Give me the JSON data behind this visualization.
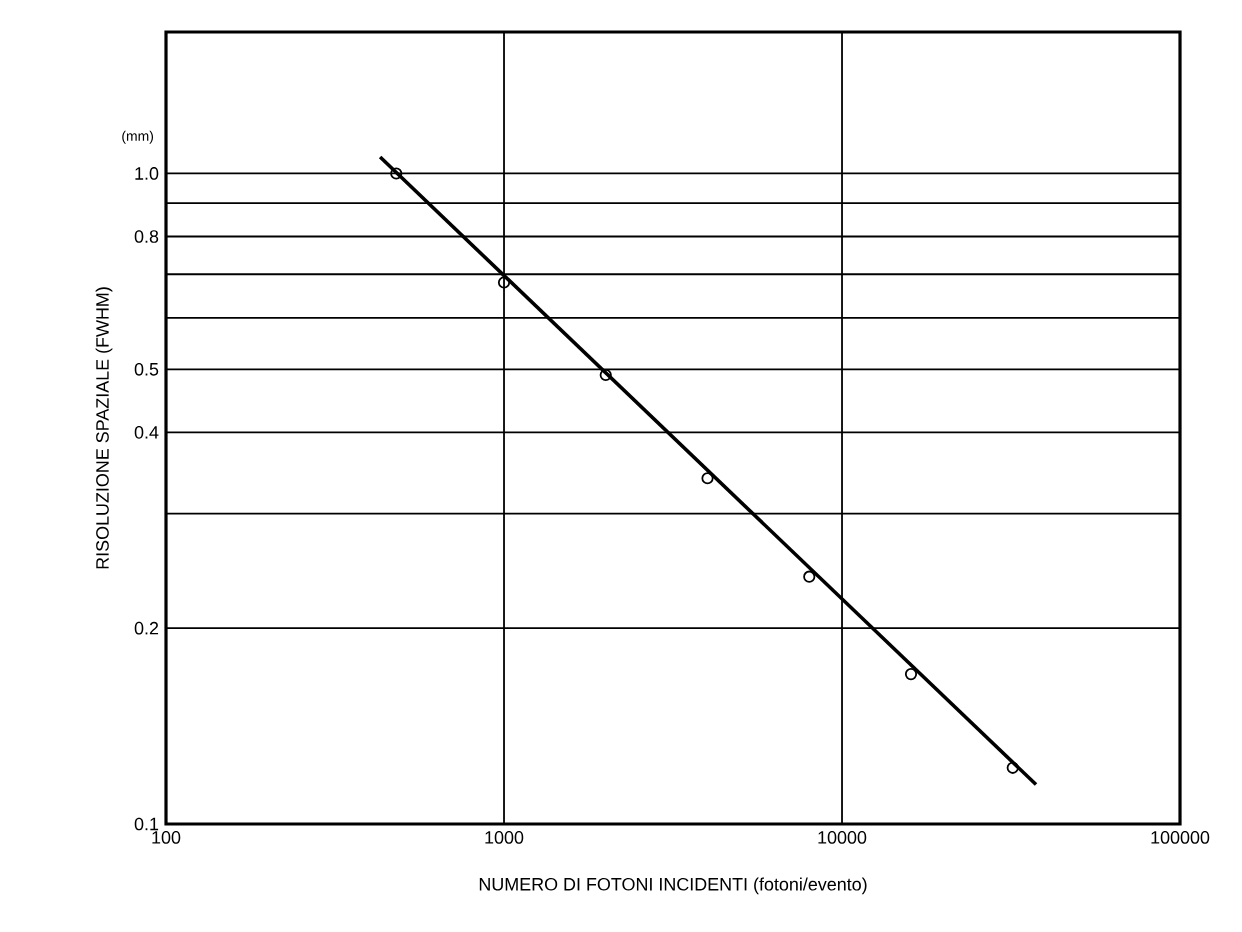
{
  "chart_data": {
    "type": "scatter",
    "xlabel": "NUMERO DI FOTONI INCIDENTI  (fotoni/evento)",
    "ylabel": "RISOLUZIONE SPAZIALE (FWHM)",
    "annotations": [
      "(mm)"
    ],
    "log": "xy",
    "grid": true,
    "marker": "circle",
    "xlim": [
      100,
      100000
    ],
    "ylim": [
      0.1,
      1.65
    ],
    "xticks": [
      100,
      1000,
      10000,
      100000
    ],
    "yticks": [
      {
        "value": 0.1,
        "label": "0.1"
      },
      {
        "value": 0.2,
        "label": "0.2"
      },
      {
        "value": 0.3,
        "label": null
      },
      {
        "value": 0.4,
        "label": "0.4"
      },
      {
        "value": 0.5,
        "label": "0.5"
      },
      {
        "value": 0.6,
        "label": null
      },
      {
        "value": 0.7,
        "label": null
      },
      {
        "value": 0.8,
        "label": "0.8"
      },
      {
        "value": 0.9,
        "label": null
      },
      {
        "value": 1.0,
        "label": "1.0"
      }
    ],
    "series": [
      {
        "color": "#000000",
        "x": [
          480,
          1000,
          2000,
          4000,
          8000,
          16000,
          32000
        ],
        "values": [
          1.0,
          0.68,
          0.49,
          0.34,
          0.24,
          0.17,
          0.122
        ]
      },
      {
        "type": "line",
        "color": "#000000",
        "marker": "none",
        "line_style": "solid",
        "x": [
          430,
          37500
        ],
        "values": [
          1.06,
          0.115
        ]
      }
    ]
  }
}
